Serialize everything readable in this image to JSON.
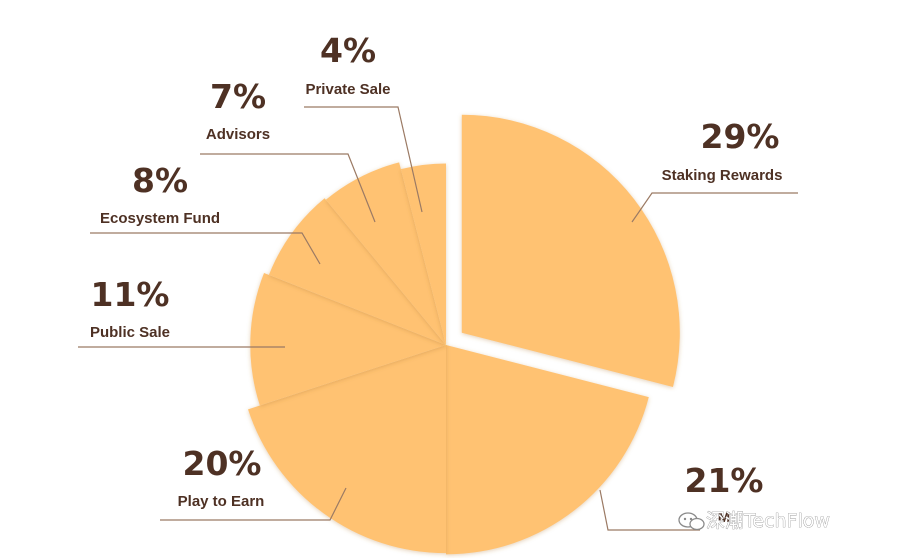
{
  "chart_data": {
    "type": "pie",
    "title": "",
    "slices": [
      {
        "label": "Staking Rewards",
        "percent_label": "29%",
        "value": 29
      },
      {
        "label": "M",
        "percent_label": "21%",
        "value": 21
      },
      {
        "label": "Play to Earn",
        "percent_label": "20%",
        "value": 20
      },
      {
        "label": "Public Sale",
        "percent_label": "11%",
        "value": 11
      },
      {
        "label": "Ecosystem Fund",
        "percent_label": "8%",
        "value": 8
      },
      {
        "label": "Advisors",
        "percent_label": "7%",
        "value": 7
      },
      {
        "label": "Private Sale",
        "percent_label": "4%",
        "value": 4
      }
    ],
    "legend": "none",
    "colors": {
      "slice": "#ffc272",
      "text": "#4e3124",
      "leader": "#9b7a64"
    }
  },
  "watermark": {
    "text": "深潮TechFlow",
    "icon": "wechat-icon"
  }
}
